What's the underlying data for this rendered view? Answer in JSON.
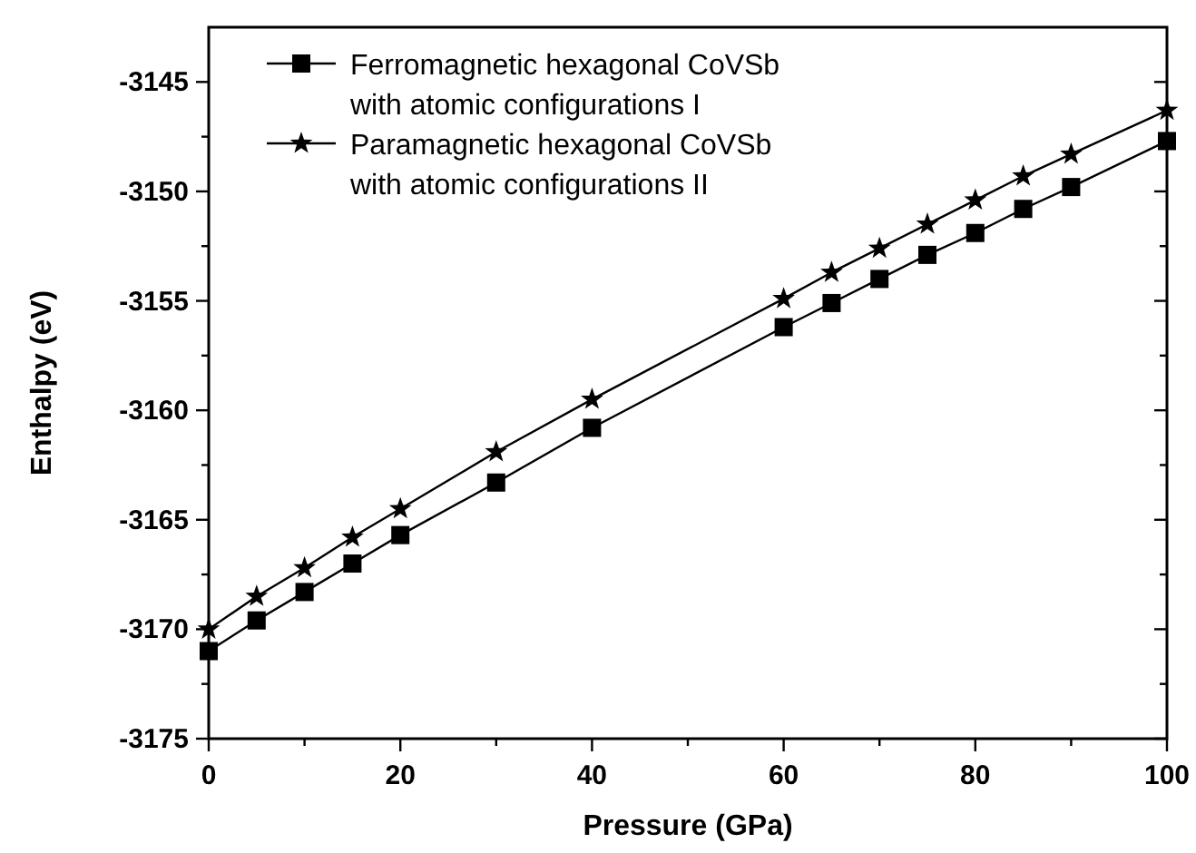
{
  "chart_data": {
    "type": "line",
    "xlabel": "Pressure (GPa)",
    "ylabel": "Enthalpy (eV)",
    "x": [
      0,
      5,
      10,
      15,
      20,
      30,
      40,
      60,
      65,
      70,
      75,
      80,
      85,
      90,
      100
    ],
    "series": [
      {
        "name": "Ferromagnetic hexagonal CoVSb\nwith atomic configurations I",
        "color": "#000000",
        "marker": "square",
        "values": [
          -3171,
          -3169.6,
          -3168.3,
          -3167,
          -3165.7,
          -3163.3,
          -3160.8,
          -3156.2,
          -3155.1,
          -3154,
          -3152.9,
          -3151.9,
          -3150.8,
          -3149.8,
          -3147.7
        ]
      },
      {
        "name": "Paramagnetic hexagonal CoVSb\nwith atomic configurations II",
        "color": "#000000",
        "marker": "star",
        "values": [
          -3170,
          -3168.5,
          -3167.2,
          -3165.8,
          -3164.5,
          -3161.9,
          -3159.5,
          -3154.9,
          -3153.7,
          -3152.6,
          -3151.5,
          -3150.4,
          -3149.3,
          -3148.3,
          -3146.3
        ]
      }
    ],
    "xlim": [
      0,
      100
    ],
    "xticks": [
      0,
      {
        "value": 10,
        "label": null
      },
      20,
      {
        "value": 30,
        "label": null
      },
      40,
      {
        "value": 50,
        "label": null
      },
      60,
      {
        "value": 70,
        "label": null
      },
      80,
      {
        "value": 90,
        "label": null
      },
      100
    ],
    "ylim": [
      -3175,
      -3142.5
    ],
    "yticks": [
      -3175,
      {
        "value": -3172.5,
        "label": null
      },
      -3170,
      {
        "value": -3167.5,
        "label": null
      },
      -3165,
      {
        "value": -3162.5,
        "label": null
      },
      -3160,
      {
        "value": -3157.5,
        "label": null
      },
      -3155,
      {
        "value": -3152.5,
        "label": null
      },
      -3150,
      {
        "value": -3147.5,
        "label": null
      },
      -3145
    ],
    "legend": "top left",
    "grid": false,
    "line_style": "solid"
  }
}
